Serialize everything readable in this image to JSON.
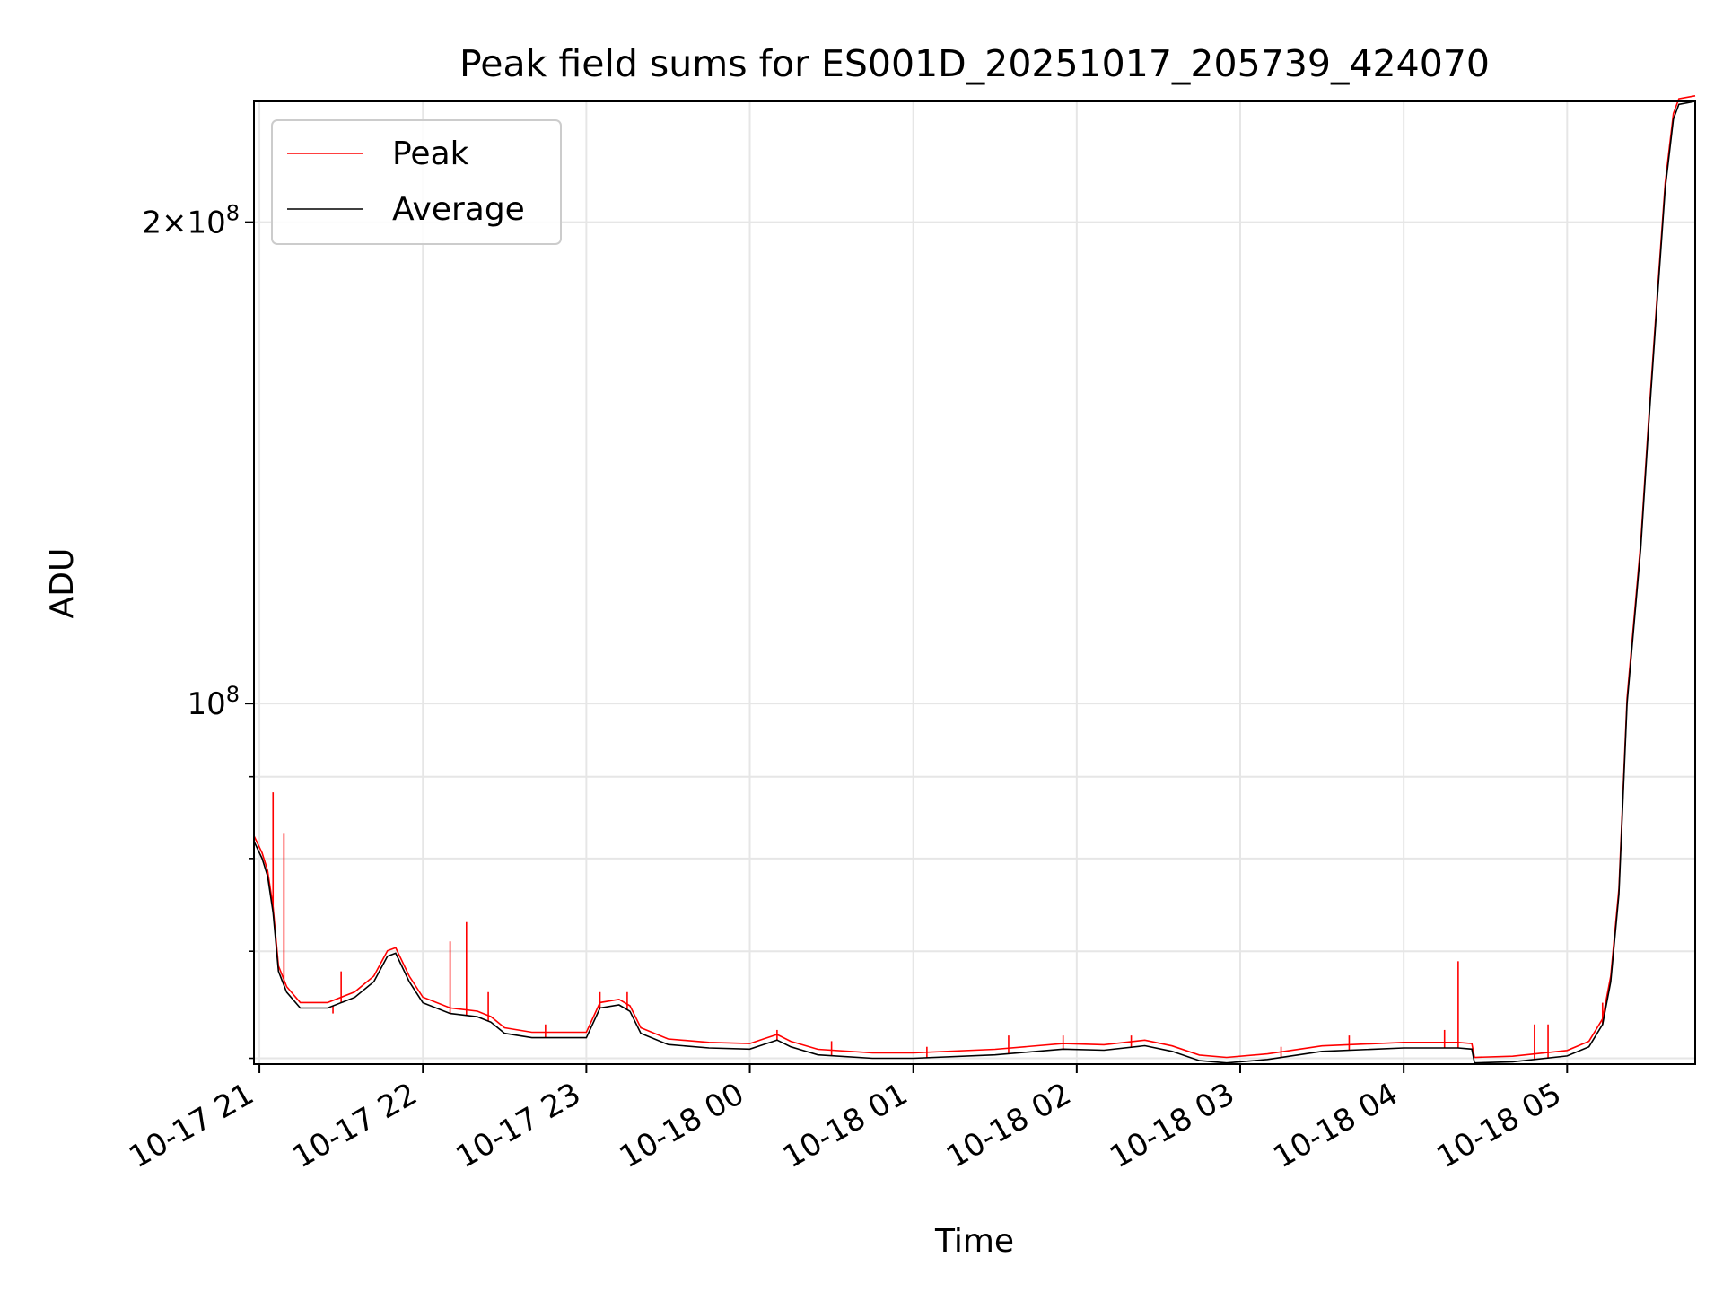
{
  "chart_data": {
    "type": "line",
    "title": "Peak field sums for ES001D_20251017_205739_424070",
    "xlabel": "Time",
    "ylabel": "ADU",
    "y_scale": "log",
    "grid": true,
    "legend_position": "upper left",
    "ylim": [
      59500000,
      238000000
    ],
    "xlim": [
      "2025-10-17 20:58",
      "2025-10-18 05:47"
    ],
    "x_ticks": [
      {
        "t": "2025-10-17 21:00",
        "label": "10-17 21"
      },
      {
        "t": "2025-10-17 22:00",
        "label": "10-17 22"
      },
      {
        "t": "2025-10-17 23:00",
        "label": "10-17 23"
      },
      {
        "t": "2025-10-18 00:00",
        "label": "10-18 00"
      },
      {
        "t": "2025-10-18 01:00",
        "label": "10-18 01"
      },
      {
        "t": "2025-10-18 02:00",
        "label": "10-18 02"
      },
      {
        "t": "2025-10-18 03:00",
        "label": "10-18 03"
      },
      {
        "t": "2025-10-18 04:00",
        "label": "10-18 04"
      },
      {
        "t": "2025-10-18 05:00",
        "label": "10-18 05"
      }
    ],
    "y_ticks_major": [
      {
        "value": 100000000,
        "base": "10",
        "exp": "8"
      },
      {
        "value": 200000000,
        "mant": "2",
        "base": "10",
        "exp": "8"
      }
    ],
    "y_ticks_minor": [
      60000000,
      70000000,
      80000000,
      90000000
    ],
    "series": [
      {
        "name": "Peak",
        "color": "#ff0000",
        "spikes": [
          {
            "t": "2025-10-17 20:58",
            "v": 83000000
          },
          {
            "t": "2025-10-17 21:05",
            "v": 88000000
          },
          {
            "t": "2025-10-17 21:09",
            "v": 83000000
          },
          {
            "t": "2025-10-17 21:30",
            "v": 68000000
          },
          {
            "t": "2025-10-17 21:27",
            "v": 64000000
          },
          {
            "t": "2025-10-17 22:10",
            "v": 71000000
          },
          {
            "t": "2025-10-17 22:16",
            "v": 73000000
          },
          {
            "t": "2025-10-17 22:24",
            "v": 66000000
          },
          {
            "t": "2025-10-17 22:45",
            "v": 63000000
          },
          {
            "t": "2025-10-17 23:05",
            "v": 66000000
          },
          {
            "t": "2025-10-17 23:15",
            "v": 66000000
          },
          {
            "t": "2025-10-18 00:10",
            "v": 62500000
          },
          {
            "t": "2025-10-18 00:30",
            "v": 61500000
          },
          {
            "t": "2025-10-18 01:05",
            "v": 61000000
          },
          {
            "t": "2025-10-18 01:35",
            "v": 62000000
          },
          {
            "t": "2025-10-18 01:55",
            "v": 62000000
          },
          {
            "t": "2025-10-18 02:20",
            "v": 62000000
          },
          {
            "t": "2025-10-18 03:15",
            "v": 61000000
          },
          {
            "t": "2025-10-18 03:40",
            "v": 62000000
          },
          {
            "t": "2025-10-18 04:15",
            "v": 62500000
          },
          {
            "t": "2025-10-18 04:20",
            "v": 69000000
          },
          {
            "t": "2025-10-18 04:48",
            "v": 63000000
          },
          {
            "t": "2025-10-18 04:53",
            "v": 63000000
          },
          {
            "t": "2025-10-18 05:13",
            "v": 65000000
          }
        ]
      },
      {
        "name": "Average",
        "color": "#000000",
        "points": [
          [
            "2025-10-17 20:58",
            82000000
          ],
          [
            "2025-10-17 21:01",
            80000000
          ],
          [
            "2025-10-17 21:03",
            78000000
          ],
          [
            "2025-10-17 21:05",
            74000000
          ],
          [
            "2025-10-17 21:07",
            68000000
          ],
          [
            "2025-10-17 21:10",
            66000000
          ],
          [
            "2025-10-17 21:15",
            64500000
          ],
          [
            "2025-10-17 21:25",
            64500000
          ],
          [
            "2025-10-17 21:35",
            65500000
          ],
          [
            "2025-10-17 21:42",
            67000000
          ],
          [
            "2025-10-17 21:47",
            69500000
          ],
          [
            "2025-10-17 21:50",
            69800000
          ],
          [
            "2025-10-17 21:55",
            67000000
          ],
          [
            "2025-10-17 22:00",
            65000000
          ],
          [
            "2025-10-17 22:10",
            64000000
          ],
          [
            "2025-10-17 22:20",
            63700000
          ],
          [
            "2025-10-17 22:25",
            63200000
          ],
          [
            "2025-10-17 22:30",
            62200000
          ],
          [
            "2025-10-17 22:40",
            61800000
          ],
          [
            "2025-10-17 23:00",
            61800000
          ],
          [
            "2025-10-17 23:05",
            64500000
          ],
          [
            "2025-10-17 23:12",
            64800000
          ],
          [
            "2025-10-17 23:16",
            64200000
          ],
          [
            "2025-10-17 23:20",
            62200000
          ],
          [
            "2025-10-17 23:30",
            61200000
          ],
          [
            "2025-10-17 23:45",
            60900000
          ],
          [
            "2025-10-18 00:00",
            60800000
          ],
          [
            "2025-10-18 00:05",
            61200000
          ],
          [
            "2025-10-18 00:10",
            61600000
          ],
          [
            "2025-10-18 00:15",
            61000000
          ],
          [
            "2025-10-18 00:25",
            60300000
          ],
          [
            "2025-10-18 00:45",
            60000000
          ],
          [
            "2025-10-18 01:00",
            60000000
          ],
          [
            "2025-10-18 01:30",
            60300000
          ],
          [
            "2025-10-18 01:55",
            60800000
          ],
          [
            "2025-10-18 02:10",
            60700000
          ],
          [
            "2025-10-18 02:25",
            61100000
          ],
          [
            "2025-10-18 02:35",
            60600000
          ],
          [
            "2025-10-18 02:45",
            59800000
          ],
          [
            "2025-10-18 02:55",
            59600000
          ],
          [
            "2025-10-18 03:10",
            59900000
          ],
          [
            "2025-10-18 03:30",
            60600000
          ],
          [
            "2025-10-18 04:00",
            60900000
          ],
          [
            "2025-10-18 04:20",
            60900000
          ],
          [
            "2025-10-18 04:25",
            60800000
          ],
          [
            "2025-10-18 04:26",
            59600000
          ],
          [
            "2025-10-18 04:40",
            59700000
          ],
          [
            "2025-10-18 05:00",
            60200000
          ],
          [
            "2025-10-18 05:08",
            61000000
          ],
          [
            "2025-10-18 05:13",
            63000000
          ],
          [
            "2025-10-18 05:16",
            67000000
          ],
          [
            "2025-10-18 05:19",
            76000000
          ],
          [
            "2025-10-18 05:22",
            100000000
          ],
          [
            "2025-10-18 05:27",
            125000000
          ],
          [
            "2025-10-18 05:30",
            150000000
          ],
          [
            "2025-10-18 05:33",
            178000000
          ],
          [
            "2025-10-18 05:36",
            210000000
          ],
          [
            "2025-10-18 05:39",
            232000000
          ],
          [
            "2025-10-18 05:41",
            237000000
          ],
          [
            "2025-10-18 05:47",
            238000000
          ]
        ]
      }
    ]
  }
}
